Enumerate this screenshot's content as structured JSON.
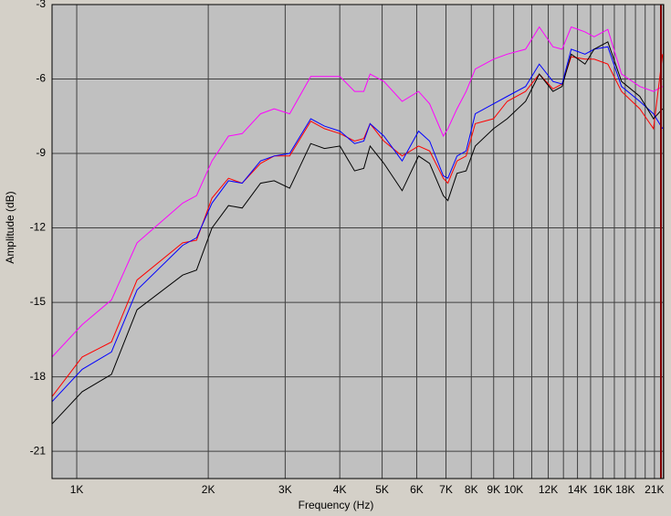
{
  "chart_data": {
    "type": "line",
    "xscale": "log",
    "grid": true,
    "xlabel": "Frequency (Hz)",
    "ylabel": "Amplitude (dB)",
    "xlim": [
      878,
      22050
    ],
    "ylim": [
      -22.1,
      -3
    ],
    "xticks": [
      {
        "value": 1000,
        "label": "1K"
      },
      {
        "value": 2000,
        "label": "2K"
      },
      {
        "value": 3000,
        "label": "3K"
      },
      {
        "value": 4000,
        "label": "4K"
      },
      {
        "value": 5000,
        "label": "5K"
      },
      {
        "value": 6000,
        "label": "6K"
      },
      {
        "value": 7000,
        "label": "7K"
      },
      {
        "value": 8000,
        "label": "8K"
      },
      {
        "value": 9000,
        "label": "9K"
      },
      {
        "value": 10000,
        "label": "10K"
      },
      {
        "value": 12000,
        "label": "12K"
      },
      {
        "value": 14000,
        "label": "14K"
      },
      {
        "value": 16000,
        "label": "16K"
      },
      {
        "value": 18000,
        "label": "18K"
      },
      {
        "value": 21000,
        "label": "21K"
      }
    ],
    "xminor": [
      11000,
      13000,
      15000,
      17000,
      19000,
      20000,
      22000
    ],
    "yticks": [
      -3,
      -6,
      -9,
      -12,
      -15,
      -18,
      -21
    ],
    "x": [
      878,
      1029,
      1201,
      1374,
      1748,
      1880,
      2040,
      2225,
      2392,
      2634,
      2830,
      3072,
      3433,
      3690,
      4004,
      4325,
      4539,
      4694,
      5047,
      5557,
      6059,
      6421,
      6903,
      7071,
      7420,
      7785,
      8169,
      8995,
      9669,
      10646,
      11445,
      12302,
      12909,
      13546,
      14563,
      15280,
      16427,
      17657,
      19441,
      20897,
      21928
    ],
    "series": [
      {
        "color": "#ff00ff",
        "values": [
          -17.2,
          -15.9,
          -14.9,
          -12.6,
          -11.0,
          -10.7,
          -9.3,
          -8.3,
          -8.2,
          -7.4,
          -7.2,
          -7.4,
          -5.9,
          -5.9,
          -5.9,
          -6.5,
          -6.5,
          -5.8,
          -6.1,
          -6.9,
          -6.5,
          -7.0,
          -8.3,
          -8.0,
          -7.2,
          -6.5,
          -5.6,
          -5.2,
          -5.0,
          -4.8,
          -3.9,
          -4.7,
          -4.8,
          -3.9,
          -4.1,
          -4.3,
          -4.0,
          -5.8,
          -6.3,
          -6.5,
          -6.3
        ]
      },
      {
        "color": "#ff0000",
        "values": [
          -18.8,
          -17.2,
          -16.6,
          -14.1,
          -12.6,
          -12.5,
          -10.8,
          -10.0,
          -10.2,
          -9.4,
          -9.1,
          -9.1,
          -7.7,
          -8.0,
          -8.2,
          -8.5,
          -8.4,
          -7.8,
          -8.5,
          -9.1,
          -8.7,
          -8.9,
          -10.0,
          -10.2,
          -9.3,
          -9.1,
          -7.8,
          -7.6,
          -6.9,
          -6.5,
          -5.8,
          -6.4,
          -6.2,
          -5.1,
          -5.2,
          -5.2,
          -5.4,
          -6.5,
          -7.2,
          -8.0,
          -5.0
        ]
      },
      {
        "color": "#0000ff",
        "values": [
          -19.0,
          -17.7,
          -17.0,
          -14.5,
          -12.7,
          -12.4,
          -11.0,
          -10.1,
          -10.2,
          -9.3,
          -9.1,
          -9.0,
          -7.6,
          -7.9,
          -8.1,
          -8.6,
          -8.5,
          -7.8,
          -8.3,
          -9.3,
          -8.1,
          -8.5,
          -9.9,
          -10.0,
          -9.1,
          -8.9,
          -7.4,
          -7.0,
          -6.7,
          -6.3,
          -5.4,
          -6.1,
          -6.2,
          -4.8,
          -5.0,
          -4.8,
          -4.7,
          -6.3,
          -6.9,
          -7.4,
          -8.0
        ]
      },
      {
        "color": "#000000",
        "values": [
          -19.9,
          -18.6,
          -17.9,
          -15.3,
          -13.9,
          -13.7,
          -12.0,
          -11.1,
          -11.2,
          -10.2,
          -10.1,
          -10.4,
          -8.6,
          -8.8,
          -8.7,
          -9.7,
          -9.6,
          -8.7,
          -9.4,
          -10.5,
          -9.1,
          -9.4,
          -10.7,
          -10.9,
          -9.8,
          -9.7,
          -8.7,
          -8.0,
          -7.6,
          -6.9,
          -5.8,
          -6.5,
          -6.3,
          -5.0,
          -5.4,
          -4.8,
          -4.5,
          -6.1,
          -6.7,
          -7.6,
          -7.2
        ]
      }
    ]
  }
}
